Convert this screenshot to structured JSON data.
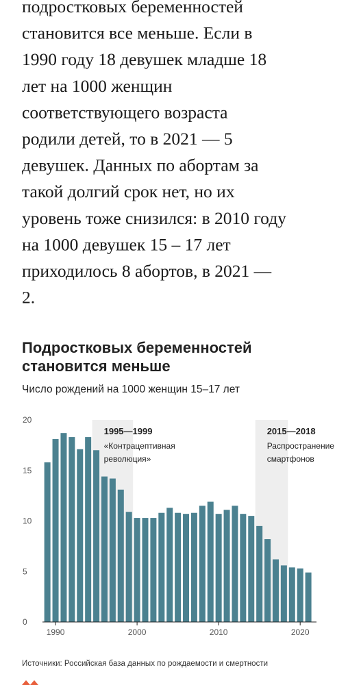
{
  "article": {
    "lines": [
      "подростковых беременностей",
      "становится все меньше. Если в",
      "1990 году 18 девушек младше 18",
      "лет на 1000 женщин",
      "соответствующего возраста",
      "родили детей, то в 2021 — 5",
      "девушек. Данных по абортам за",
      "такой долгий срок нет, но их",
      "уровень тоже снизился: в 2010 году",
      "на 1000 девушек 15 – 17 лет",
      "приходилось 8 абортов, в 2021 —",
      "2."
    ]
  },
  "chart_data": {
    "type": "bar",
    "title": [
      "Подростковых беременностей",
      "становится меньше"
    ],
    "subtitle": "Число рождений на 1000 женщин 15–17 лет",
    "x": [
      1989,
      1990,
      1991,
      1992,
      1993,
      1994,
      1995,
      1996,
      1997,
      1998,
      1999,
      2000,
      2001,
      2002,
      2003,
      2004,
      2005,
      2006,
      2007,
      2008,
      2009,
      2010,
      2011,
      2012,
      2013,
      2014,
      2015,
      2016,
      2017,
      2018,
      2019,
      2020,
      2021
    ],
    "values": [
      15.8,
      18.1,
      18.7,
      18.3,
      17.1,
      18.3,
      17.0,
      14.4,
      14.2,
      13.1,
      10.9,
      10.3,
      10.3,
      10.3,
      10.8,
      11.3,
      10.8,
      10.7,
      10.8,
      11.5,
      11.9,
      10.7,
      11.1,
      11.5,
      10.7,
      10.5,
      9.5,
      8.2,
      6.2,
      5.6,
      5.4,
      5.3,
      4.9
    ],
    "color": "#4b8190",
    "xlim": [
      1988.4,
      2022
    ],
    "xticks": [
      1990,
      2000,
      2010,
      2020
    ],
    "ylim": [
      0,
      20
    ],
    "yticks": [
      0,
      5,
      10,
      15,
      20
    ],
    "highlights": [
      {
        "start": 1995,
        "end": 1999,
        "label": "1995—1999",
        "note": [
          "«Контрацептивная",
          "революция»"
        ]
      },
      {
        "start": 2015,
        "end": 2018,
        "label": "2015—2018",
        "note": [
          "Распространение",
          "смартфонов"
        ]
      }
    ],
    "highlight_color": "#eeeeee",
    "source": "Источники: Российская база данных по рождаемости и смертности"
  }
}
